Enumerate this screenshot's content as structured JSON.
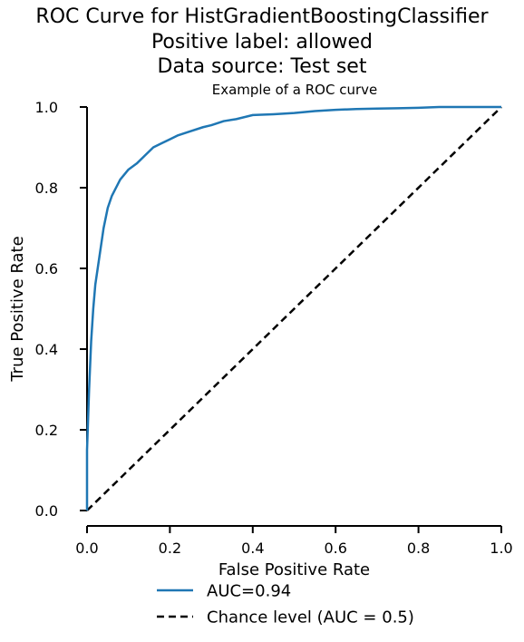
{
  "chart_data": {
    "type": "line",
    "title_lines": [
      "ROC Curve for HistGradientBoostingClassifier",
      "Positive label: allowed",
      "Data source: Test set"
    ],
    "subtitle": "Example of a ROC curve",
    "xlabel": "False Positive Rate",
    "ylabel": "True Positive Rate",
    "xlim": [
      0.0,
      1.0
    ],
    "ylim": [
      0.0,
      1.0
    ],
    "xticks": [
      "0.0",
      "0.2",
      "0.4",
      "0.6",
      "0.8",
      "1.0"
    ],
    "yticks": [
      "0.0",
      "0.2",
      "0.4",
      "0.6",
      "0.8",
      "1.0"
    ],
    "grid": false,
    "legend_position": "bottom, below axes",
    "series": [
      {
        "name": "AUC=0.94",
        "color": "#1f77b4",
        "style": "solid",
        "x": [
          0.0,
          0.0,
          0.005,
          0.01,
          0.015,
          0.02,
          0.03,
          0.04,
          0.05,
          0.06,
          0.08,
          0.1,
          0.12,
          0.14,
          0.16,
          0.18,
          0.2,
          0.22,
          0.25,
          0.28,
          0.3,
          0.33,
          0.36,
          0.4,
          0.45,
          0.5,
          0.55,
          0.6,
          0.65,
          0.7,
          0.75,
          0.8,
          0.85,
          0.9,
          1.0
        ],
        "y": [
          0.0,
          0.15,
          0.3,
          0.42,
          0.5,
          0.56,
          0.63,
          0.7,
          0.75,
          0.78,
          0.82,
          0.845,
          0.86,
          0.88,
          0.9,
          0.91,
          0.92,
          0.93,
          0.94,
          0.95,
          0.955,
          0.965,
          0.97,
          0.98,
          0.982,
          0.985,
          0.99,
          0.993,
          0.995,
          0.996,
          0.997,
          0.998,
          1.0,
          1.0,
          1.0
        ]
      },
      {
        "name": "Chance level (AUC = 0.5)",
        "color": "#000000",
        "style": "dashed",
        "x": [
          0.0,
          1.0
        ],
        "y": [
          0.0,
          1.0
        ]
      }
    ]
  }
}
